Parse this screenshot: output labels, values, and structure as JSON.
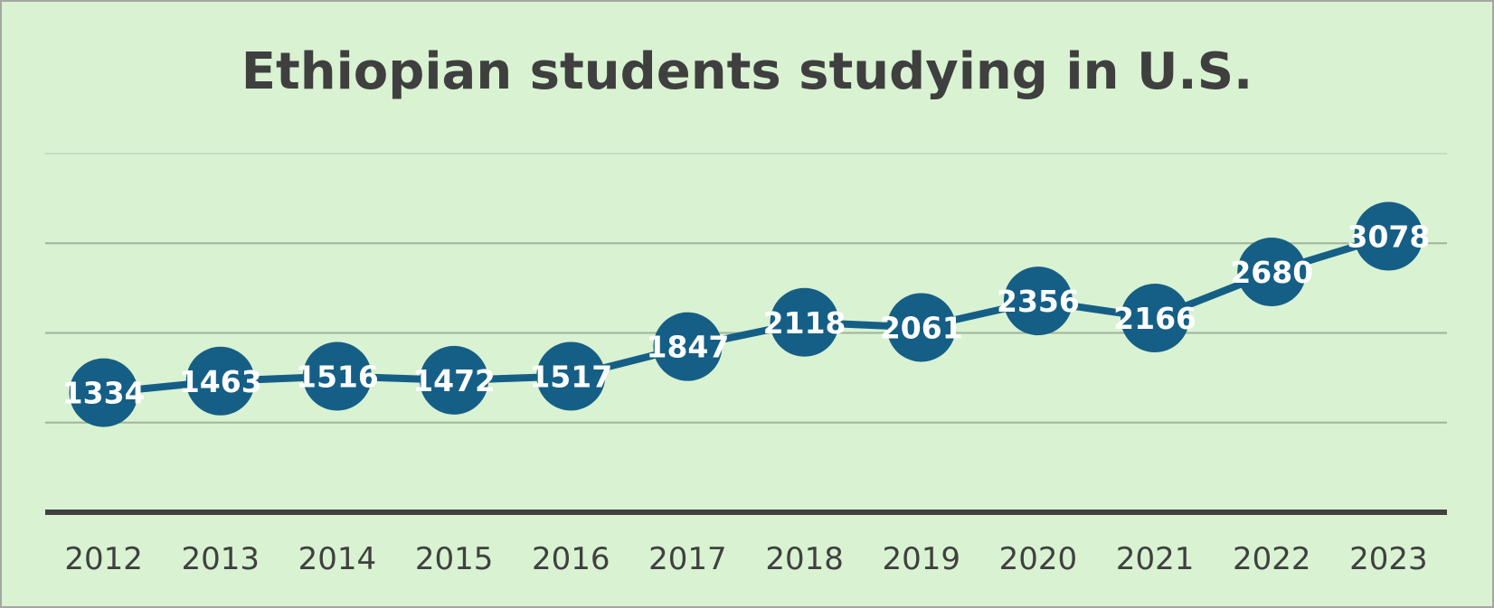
{
  "chart_data": {
    "type": "line",
    "title": "Ethiopian students studying in U.S.",
    "xlabel": "",
    "ylabel": "",
    "categories": [
      "2012",
      "2013",
      "2014",
      "2015",
      "2016",
      "2017",
      "2018",
      "2019",
      "2020",
      "2021",
      "2022",
      "2023"
    ],
    "series": [
      {
        "values": [
          1334,
          1463,
          1516,
          1472,
          1517,
          1847,
          2118,
          2061,
          2356,
          2166,
          2680,
          3078
        ]
      }
    ],
    "ylim": [
      0,
      4000
    ],
    "y_axis_labels_shown": false,
    "grid": true,
    "legend": "none",
    "data_labels": true,
    "colors": {
      "background": "#d9f2d2",
      "border": "#a6a6a6",
      "series": "#155f86",
      "gridline": "#a0b49a",
      "top_gridline": "#c6dcc1",
      "baseline": "#404040",
      "title": "#3f3f3f",
      "tick_text": "#404040",
      "label_text": "#ffffff"
    }
  }
}
